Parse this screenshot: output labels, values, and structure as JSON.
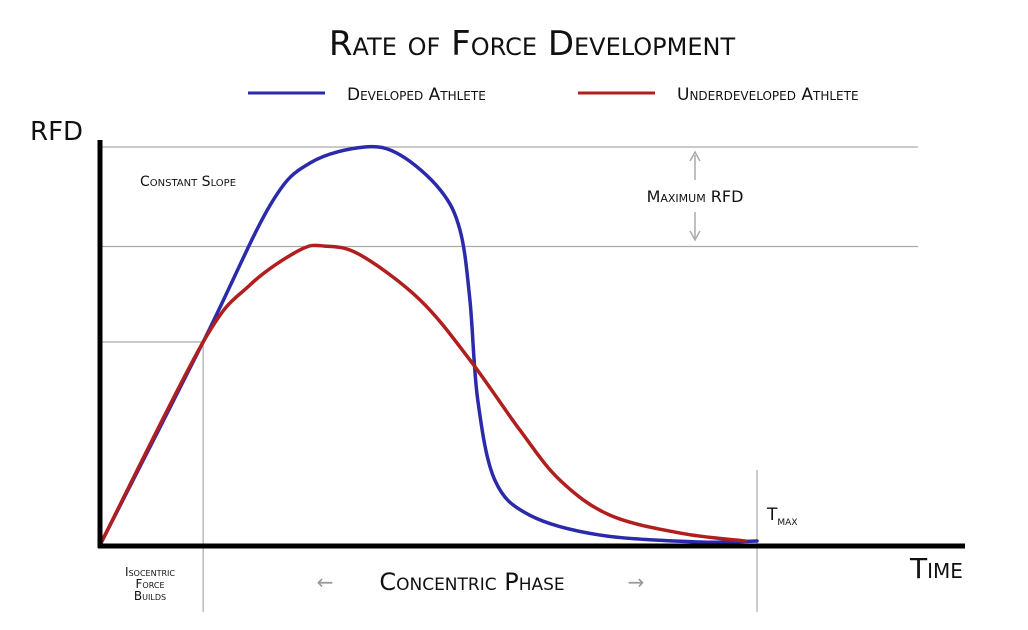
{
  "chart_data": {
    "type": "line",
    "title": "Rate of Force Development",
    "xlabel": "Time",
    "ylabel": "RFD",
    "xlim": [
      0,
      100
    ],
    "ylim": [
      0,
      100
    ],
    "grid": false,
    "legend_placement": "top",
    "series": [
      {
        "name": "Developed Athlete",
        "color": "#2a2aaa",
        "points": [
          [
            0,
            0
          ],
          [
            15.7,
            51
          ],
          [
            25.9,
            85.4
          ],
          [
            32,
            96
          ],
          [
            40.3,
            100
          ],
          [
            45.7,
            98
          ],
          [
            51.8,
            89.2
          ],
          [
            54.8,
            79.1
          ],
          [
            56.3,
            61.6
          ],
          [
            57.5,
            36.4
          ],
          [
            60.1,
            16.3
          ],
          [
            65.4,
            7.5
          ],
          [
            76.1,
            2.5
          ],
          [
            91.3,
            0.75
          ],
          [
            100,
            1
          ]
        ]
      },
      {
        "name": "Underdeveloped Athlete",
        "color": "#b01e1e",
        "points": [
          [
            0,
            0
          ],
          [
            15.7,
            51
          ],
          [
            22.8,
            65.3
          ],
          [
            30.4,
            74.1
          ],
          [
            34.2,
            75.1
          ],
          [
            39.6,
            72.9
          ],
          [
            48.7,
            61.6
          ],
          [
            56.3,
            46.5
          ],
          [
            63.9,
            28.9
          ],
          [
            70,
            16.3
          ],
          [
            77.6,
            7.5
          ],
          [
            88.3,
            3
          ],
          [
            98.2,
            1
          ]
        ]
      }
    ],
    "reference_lines_y": [
      100,
      75,
      51
    ],
    "reference_lines_x": [
      15.7,
      100
    ],
    "annotations": {
      "constant_slope": "Constant Slope",
      "maximum_rfd": "Maximum RFD",
      "t_max_main": "T",
      "t_max_sub": "max",
      "isocentric": [
        "Isocentric",
        "Force",
        "Builds"
      ],
      "concentric_phase": "Concentric Phase",
      "arrow_left": "←",
      "arrow_right": "→"
    }
  }
}
